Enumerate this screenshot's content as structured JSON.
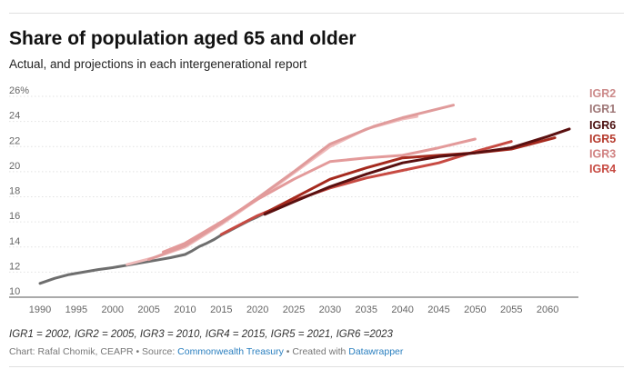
{
  "header": {
    "title": "Share of population aged 65 and older",
    "subtitle": "Actual, and projections in each intergenerational report"
  },
  "footer": {
    "note": "IGR1 = 2002, IGR2 = 2005, IGR3 = 2010, IGR4 = 2015, IGR5 = 2021, IGR6 =2023",
    "credit_prefix": "Chart: Rafal Chomik, CEAPR • Source: ",
    "source_link": "Commonwealth Treasury",
    "credit_mid": " • Created with ",
    "tool_link": "Datawrapper"
  },
  "chart_data": {
    "type": "line",
    "title": "Share of population aged 65 and older",
    "subtitle": "Actual, and projections in each intergenerational report",
    "xlabel": "",
    "ylabel": "",
    "xlim": [
      1990,
      2064
    ],
    "ylim": [
      10,
      26
    ],
    "x_ticks": [
      1990,
      1995,
      2000,
      2005,
      2010,
      2015,
      2020,
      2025,
      2030,
      2035,
      2040,
      2045,
      2050,
      2055,
      2060
    ],
    "y_ticks": [
      10,
      12,
      14,
      16,
      18,
      20,
      22,
      24,
      26
    ],
    "y_tick_labels": [
      "10",
      "12",
      "14",
      "16",
      "18",
      "20",
      "22",
      "24",
      "26%"
    ],
    "grid": "horizontal",
    "legend": "direct-labels-right",
    "series": [
      {
        "name": "Actual",
        "color": "#6e6e6e",
        "width": 3,
        "labeled": false,
        "points": [
          [
            1990,
            11.1
          ],
          [
            1992,
            11.5
          ],
          [
            1994,
            11.8
          ],
          [
            1996,
            12.0
          ],
          [
            1998,
            12.2
          ],
          [
            2000,
            12.35
          ],
          [
            2002,
            12.55
          ],
          [
            2004,
            12.75
          ],
          [
            2006,
            12.95
          ],
          [
            2008,
            13.15
          ],
          [
            2010,
            13.4
          ],
          [
            2011,
            13.7
          ],
          [
            2012,
            14.05
          ],
          [
            2013,
            14.3
          ],
          [
            2014,
            14.6
          ],
          [
            2015,
            14.95
          ],
          [
            2016,
            15.25
          ],
          [
            2017,
            15.55
          ],
          [
            2018,
            15.85
          ],
          [
            2019,
            16.15
          ],
          [
            2020,
            16.4
          ],
          [
            2021,
            16.7
          ]
        ]
      },
      {
        "name": "IGR1",
        "color": "#efbaba",
        "width": 3,
        "labeled": true,
        "label_color": "#9e7676",
        "label_y": 25.0,
        "points": [
          [
            2002,
            12.6
          ],
          [
            2006,
            13.2
          ],
          [
            2010,
            14.0
          ],
          [
            2015,
            15.8
          ],
          [
            2020,
            17.8
          ],
          [
            2025,
            19.9
          ],
          [
            2030,
            22.0
          ],
          [
            2035,
            23.4
          ],
          [
            2040,
            24.2
          ],
          [
            2042,
            24.4
          ]
        ]
      },
      {
        "name": "IGR2",
        "color": "#e09b9b",
        "width": 3,
        "labeled": true,
        "label_color": "#cc8a8a",
        "label_y": 26.2,
        "points": [
          [
            2005,
            13.0
          ],
          [
            2010,
            14.1
          ],
          [
            2015,
            15.9
          ],
          [
            2020,
            17.9
          ],
          [
            2025,
            20.0
          ],
          [
            2030,
            22.2
          ],
          [
            2036,
            23.6
          ],
          [
            2040,
            24.3
          ],
          [
            2047,
            25.3
          ]
        ]
      },
      {
        "name": "IGR3",
        "color": "#e39a9a",
        "width": 3,
        "labeled": true,
        "label_color": "#d08080",
        "label_y": 21.4,
        "points": [
          [
            2007,
            13.6
          ],
          [
            2010,
            14.3
          ],
          [
            2015,
            16.0
          ],
          [
            2020,
            17.8
          ],
          [
            2025,
            19.4
          ],
          [
            2030,
            20.8
          ],
          [
            2035,
            21.1
          ],
          [
            2040,
            21.3
          ],
          [
            2045,
            21.9
          ],
          [
            2050,
            22.6
          ]
        ]
      },
      {
        "name": "IGR4",
        "color": "#c74a42",
        "width": 3,
        "labeled": true,
        "label_color": "#c74a42",
        "label_y": 20.2,
        "points": [
          [
            2015,
            15.0
          ],
          [
            2020,
            16.5
          ],
          [
            2025,
            17.7
          ],
          [
            2030,
            18.7
          ],
          [
            2035,
            19.5
          ],
          [
            2040,
            20.1
          ],
          [
            2045,
            20.7
          ],
          [
            2050,
            21.6
          ],
          [
            2055,
            22.4
          ]
        ]
      },
      {
        "name": "IGR5",
        "color": "#a52a1e",
        "width": 3,
        "labeled": true,
        "label_color": "#b5392c",
        "label_y": 22.6,
        "points": [
          [
            2021,
            16.7
          ],
          [
            2025,
            17.9
          ],
          [
            2030,
            19.4
          ],
          [
            2035,
            20.3
          ],
          [
            2040,
            21.1
          ],
          [
            2045,
            21.3
          ],
          [
            2050,
            21.5
          ],
          [
            2055,
            21.8
          ],
          [
            2061,
            22.7
          ]
        ]
      },
      {
        "name": "IGR6",
        "color": "#5a1010",
        "width": 3,
        "labeled": true,
        "label_color": "#4a0e0e",
        "label_y": 23.7,
        "points": [
          [
            2021,
            16.6
          ],
          [
            2025,
            17.6
          ],
          [
            2030,
            18.8
          ],
          [
            2035,
            19.8
          ],
          [
            2040,
            20.7
          ],
          [
            2045,
            21.2
          ],
          [
            2050,
            21.5
          ],
          [
            2055,
            21.9
          ],
          [
            2060,
            22.8
          ],
          [
            2063,
            23.4
          ]
        ]
      }
    ]
  }
}
